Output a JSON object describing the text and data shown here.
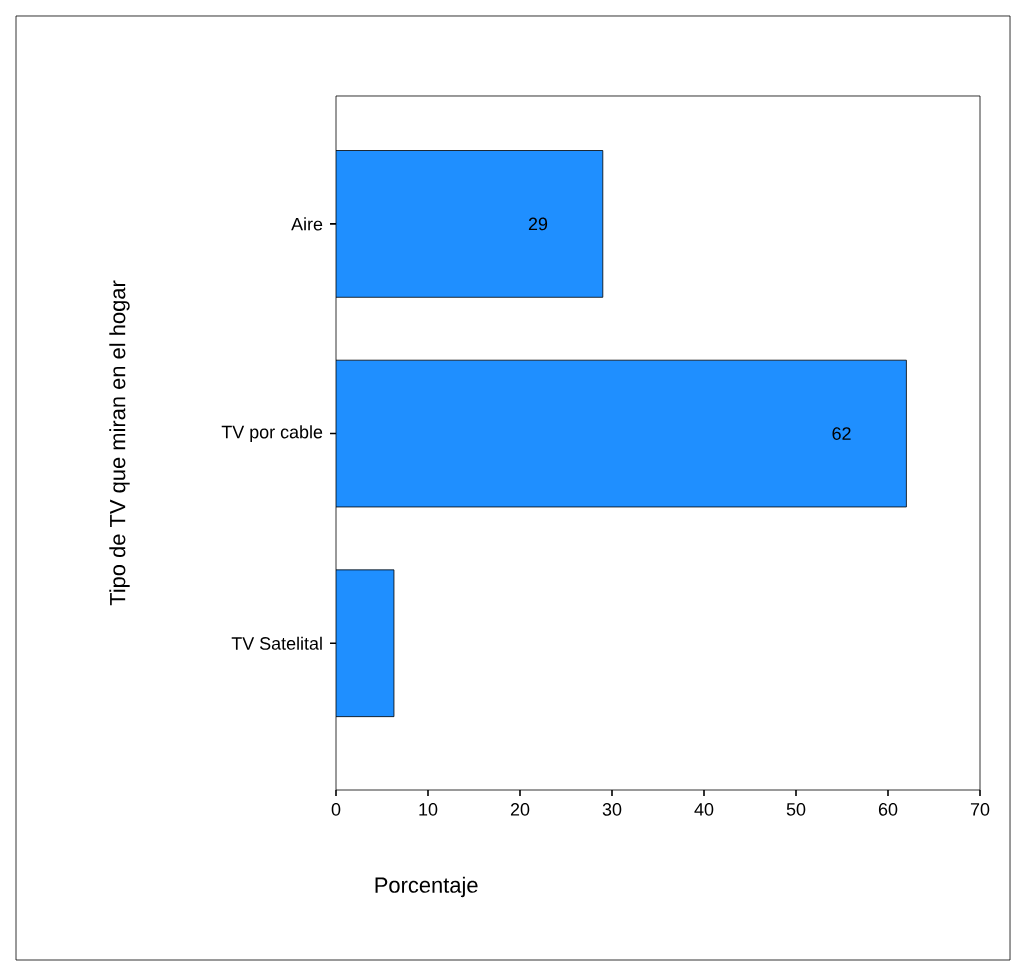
{
  "chart_data": {
    "type": "bar",
    "orientation": "horizontal",
    "ylabel": "Tipo de TV que miran en el hogar",
    "xlabel": "Porcentaje",
    "categories": [
      "Aire",
      "TV por cable",
      "TV Satelital"
    ],
    "values": [
      29,
      62,
      6.3
    ],
    "value_labels": [
      "29",
      "62",
      null
    ],
    "color": "#1f8fff",
    "xlim": [
      0,
      70
    ],
    "xticks": [
      0,
      10,
      20,
      30,
      40,
      50,
      60,
      70
    ]
  }
}
